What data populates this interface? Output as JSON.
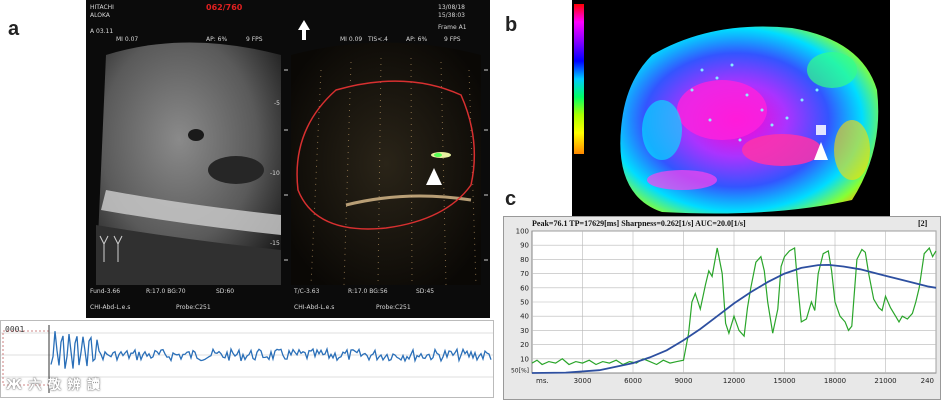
{
  "panel_labels": {
    "a": "a",
    "b": "b",
    "c": "c"
  },
  "panel_a": {
    "vendor_line1": "HITACHI",
    "vendor_line2": "ALOKA",
    "frame_counter": "062/760",
    "timestamp_line1": "13/08/18",
    "timestamp_line2": "15/38:03",
    "left_info": "A 03.11",
    "left_mi": "MI 0.07",
    "left_ap": "AP: 6%",
    "left_fps": "9 FPS",
    "right_mi": "MI 0.09",
    "right_tis": "TIS<.4",
    "right_ap": "AP: 6%",
    "right_fps": "9 FPS",
    "preset": "Frame A1",
    "left_bottom_1": "Fund-3.66",
    "left_bottom_2": "R:17.0 BG:70",
    "left_bottom_3": "SD:60",
    "right_bottom_1": "T/C-3.63",
    "right_bottom_2": "R:17.0 BG:56",
    "right_bottom_3": "SD:45",
    "probe_left_1": "CHI-Abd-L.e.s",
    "probe_left_2": "Probe:C251",
    "probe_right_1": "CHI-Abd-L.e.s",
    "probe_right_2": "Probe:C251",
    "depth_marks": [
      "-5",
      "-10",
      "-15"
    ],
    "strip_label": "0001"
  },
  "watermark": "Ж 六 敬 辨 讀",
  "panel_c": {
    "header": "Peak=76.1  TP=17629[ms]  Sharpness=0.262[1/s]  AUC=20.0[1/s]",
    "index": "[2]",
    "colors": {
      "measured": "#2aa52a",
      "fit": "#2d4fa0",
      "grid": "#b8b8b8",
      "plot_bg": "#ffffff"
    },
    "chart_data": {
      "type": "line",
      "xlabel": "ms.",
      "ylabel": "50[%]",
      "x_ticks": [
        "3000",
        "6000",
        "9000",
        "12000",
        "15000",
        "18000",
        "21000",
        "240"
      ],
      "y_ticks": [
        "100",
        "90",
        "80",
        "70",
        "60",
        "50",
        "40",
        "30",
        "20",
        "10"
      ],
      "ylim": [
        0,
        100
      ],
      "xlim": [
        0,
        24000
      ],
      "series": [
        {
          "x": [
            0,
            300,
            600,
            1000,
            1400,
            1800,
            2200,
            2600,
            3000,
            3400,
            3800,
            4200,
            4600,
            5000,
            5400,
            5800,
            6200,
            6600,
            7000,
            7400,
            7800,
            8200,
            8600,
            9000,
            9300,
            9500,
            9700,
            10000,
            10300,
            10500,
            10700,
            11000,
            11300,
            11500,
            11700,
            12000,
            12300,
            12600,
            12800,
            13000,
            13300,
            13600,
            13800,
            14000,
            14300,
            14600,
            14800,
            15000,
            15300,
            15600,
            15800,
            16000,
            16300,
            16600,
            16800,
            17000,
            17300,
            17600,
            17800,
            18000,
            18300,
            18600,
            18800,
            19000,
            19300,
            19600,
            19800,
            20000,
            20300,
            20600,
            20800,
            21000,
            21300,
            21600,
            21800,
            22000,
            22300,
            22600,
            22800,
            23000,
            23300,
            23600,
            23800,
            24000
          ],
          "values": [
            7,
            9,
            6,
            8,
            7,
            10,
            6,
            8,
            7,
            9,
            6,
            8,
            7,
            9,
            6,
            8,
            7,
            10,
            8,
            6,
            9,
            7,
            8,
            9,
            28,
            50,
            56,
            45,
            62,
            72,
            68,
            88,
            70,
            35,
            28,
            40,
            30,
            26,
            46,
            60,
            78,
            82,
            72,
            50,
            28,
            45,
            75,
            82,
            86,
            88,
            60,
            36,
            38,
            50,
            44,
            70,
            84,
            86,
            72,
            50,
            40,
            36,
            30,
            33,
            80,
            87,
            85,
            70,
            52,
            46,
            44,
            54,
            46,
            40,
            36,
            40,
            38,
            42,
            50,
            60,
            84,
            88,
            82,
            86
          ]
        },
        {
          "x": [
            0,
            2000,
            4000,
            6000,
            7000,
            8000,
            9000,
            10000,
            11000,
            12000,
            13000,
            14000,
            15000,
            16000,
            17000,
            17629,
            18500,
            19500,
            20500,
            21500,
            22500,
            23500,
            24000
          ],
          "values": [
            0,
            0.3,
            2,
            7,
            11,
            16,
            23,
            31,
            40,
            49,
            57,
            64,
            70,
            74,
            76,
            76.1,
            75,
            73,
            70,
            67,
            64,
            61,
            60
          ]
        }
      ]
    }
  },
  "panel_b": {
    "colorbar_colors": [
      "#ff0000",
      "#ff00ff",
      "#8800ff",
      "#0000ff",
      "#00ccff",
      "#00ff66",
      "#aaff00",
      "#ffff00",
      "#ff8800",
      "#ff0000"
    ]
  }
}
